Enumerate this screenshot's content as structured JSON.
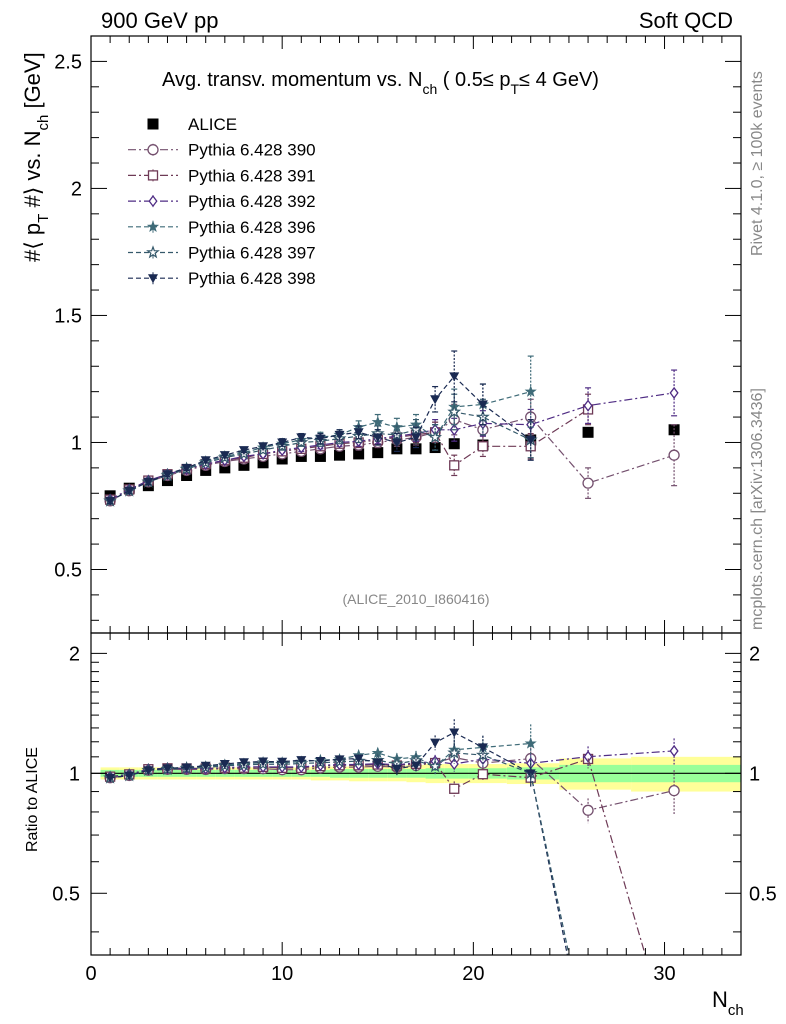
{
  "header": {
    "left": "900 GeV pp",
    "right": "Soft QCD"
  },
  "side": {
    "top": "Rivet 4.1.0, ≥ 100k events",
    "bottom": "mcplots.cern.ch [arXiv:1306.3436]"
  },
  "watermark": "(ALICE_2010_I860416)",
  "chart_data": {
    "type": "scatter",
    "title": {
      "main": "Avg. transv. momentum vs. N",
      "sub1": "ch",
      "mid": " ( 0.5≤ p",
      "sub2": "T",
      "end": "≤ 4 GeV)"
    },
    "xlabel": {
      "main": "N",
      "sub": "ch"
    },
    "ylabel": {
      "main": "#⟨ p",
      "sub1": "T",
      "mid": " #⟩ vs. N",
      "sub2": "ch",
      "end": " [GeV]"
    },
    "ratio_ylabel": "Ratio to ALICE",
    "xlim": [
      0,
      34
    ],
    "ylim": [
      0.25,
      2.6
    ],
    "ratio_ylim": [
      0.35,
      2.25
    ],
    "xticks": [
      "0",
      "10",
      "20",
      "30"
    ],
    "yticks": [
      "0.5",
      "1",
      "1.5",
      "2",
      "2.5"
    ],
    "ratio_yticks": [
      "0.5",
      "1",
      "2"
    ],
    "reference": {
      "name": "ALICE",
      "color": "#000000",
      "marker": "square",
      "x": [
        1,
        2,
        3,
        4,
        5,
        6,
        7,
        8,
        9,
        10,
        11,
        12,
        13,
        14,
        15,
        16,
        17,
        18,
        19,
        20.5,
        23,
        26,
        30.5
      ],
      "y": [
        0.79,
        0.82,
        0.83,
        0.85,
        0.87,
        0.89,
        0.9,
        0.91,
        0.92,
        0.935,
        0.945,
        0.945,
        0.95,
        0.955,
        0.96,
        0.975,
        0.975,
        0.98,
        0.995,
        0.99,
        1.01,
        1.04,
        1.05
      ],
      "band_rel_inner": [
        0.02,
        0.02,
        0.02,
        0.02,
        0.02,
        0.02,
        0.02,
        0.02,
        0.02,
        0.02,
        0.02,
        0.02,
        0.025,
        0.025,
        0.025,
        0.025,
        0.025,
        0.03,
        0.03,
        0.03,
        0.035,
        0.05,
        0.05
      ],
      "band_rel_outer": [
        0.035,
        0.035,
        0.035,
        0.035,
        0.035,
        0.035,
        0.035,
        0.035,
        0.035,
        0.035,
        0.035,
        0.04,
        0.04,
        0.045,
        0.045,
        0.045,
        0.05,
        0.055,
        0.055,
        0.055,
        0.06,
        0.09,
        0.1
      ]
    },
    "series": [
      {
        "name": "Pythia 6.428 390",
        "color": "#74506e",
        "marker": "circle-open",
        "dash": "8,3,2,3",
        "x": [
          1,
          2,
          3,
          4,
          5,
          6,
          7,
          8,
          9,
          10,
          11,
          12,
          13,
          14,
          15,
          16,
          17,
          18,
          19,
          20.5,
          23,
          26,
          30.5
        ],
        "y": [
          0.77,
          0.81,
          0.845,
          0.87,
          0.89,
          0.91,
          0.925,
          0.935,
          0.945,
          0.955,
          0.965,
          0.975,
          0.985,
          0.99,
          1.0,
          1.01,
          1.02,
          1.04,
          1.09,
          1.05,
          1.1,
          0.84,
          0.95
        ],
        "err": [
          0.01,
          0.01,
          0.01,
          0.01,
          0.01,
          0.01,
          0.01,
          0.01,
          0.01,
          0.01,
          0.015,
          0.015,
          0.015,
          0.02,
          0.02,
          0.025,
          0.03,
          0.04,
          0.06,
          0.05,
          0.07,
          0.06,
          0.12
        ]
      },
      {
        "name": "Pythia 6.428 391",
        "color": "#6e3a56",
        "marker": "square-open",
        "dash": "8,3,2,3",
        "x": [
          1,
          2,
          3,
          4,
          5,
          6,
          7,
          8,
          9,
          10,
          11,
          12,
          13,
          14,
          15,
          16,
          17,
          18,
          19,
          20.5,
          23,
          26
        ],
        "y": [
          0.775,
          0.815,
          0.85,
          0.875,
          0.895,
          0.915,
          0.93,
          0.94,
          0.955,
          0.965,
          0.975,
          0.985,
          0.995,
          1.0,
          1.01,
          1.02,
          1.03,
          1.04,
          0.91,
          0.985,
          0.985,
          1.13
        ],
        "err": [
          0.01,
          0.01,
          0.01,
          0.01,
          0.01,
          0.01,
          0.01,
          0.01,
          0.01,
          0.01,
          0.015,
          0.015,
          0.015,
          0.02,
          0.02,
          0.025,
          0.03,
          0.04,
          0.04,
          0.04,
          0.05,
          0.06
        ]
      },
      {
        "name": "Pythia 6.428 392",
        "color": "#4f2c84",
        "marker": "diamond-open",
        "dash": "8,3,2,3",
        "x": [
          1,
          2,
          3,
          4,
          5,
          6,
          7,
          8,
          9,
          10,
          11,
          12,
          13,
          14,
          15,
          16,
          17,
          18,
          19,
          20.5,
          23,
          26,
          30.5
        ],
        "y": [
          0.775,
          0.815,
          0.85,
          0.875,
          0.895,
          0.915,
          0.93,
          0.945,
          0.955,
          0.97,
          0.98,
          0.99,
          1.0,
          1.005,
          1.015,
          1.025,
          1.035,
          1.05,
          1.05,
          1.075,
          1.07,
          1.145,
          1.195
        ],
        "err": [
          0.01,
          0.01,
          0.01,
          0.01,
          0.01,
          0.01,
          0.01,
          0.01,
          0.01,
          0.01,
          0.015,
          0.015,
          0.015,
          0.02,
          0.02,
          0.025,
          0.03,
          0.04,
          0.045,
          0.05,
          0.06,
          0.07,
          0.09
        ]
      },
      {
        "name": "Pythia 6.428 396",
        "color": "#3f6b78",
        "marker": "star-filled",
        "dash": "5,3",
        "x": [
          1,
          2,
          3,
          4,
          5,
          6,
          7,
          8,
          9,
          10,
          11,
          12,
          13,
          14,
          15,
          16,
          17,
          18,
          19,
          20.5,
          23
        ],
        "y": [
          0.77,
          0.81,
          0.845,
          0.875,
          0.9,
          0.925,
          0.945,
          0.96,
          0.98,
          0.995,
          1.01,
          1.02,
          1.03,
          1.06,
          1.08,
          1.06,
          1.07,
          1.02,
          1.14,
          1.15,
          1.2
        ],
        "err": [
          0.01,
          0.01,
          0.01,
          0.01,
          0.01,
          0.01,
          0.01,
          0.01,
          0.01,
          0.015,
          0.015,
          0.02,
          0.02,
          0.025,
          0.03,
          0.035,
          0.04,
          0.05,
          0.07,
          0.08,
          0.14
        ]
      },
      {
        "name": "Pythia 6.428 397",
        "color": "#35596b",
        "marker": "star-open",
        "dash": "5,3",
        "x": [
          1,
          2,
          3,
          4,
          5,
          6,
          7,
          8,
          9,
          10,
          11,
          12,
          13,
          14,
          15,
          16,
          17,
          18,
          19,
          20.5,
          23
        ],
        "y": [
          0.77,
          0.81,
          0.845,
          0.87,
          0.895,
          0.92,
          0.94,
          0.955,
          0.97,
          0.985,
          1.0,
          1.005,
          1.015,
          1.025,
          1.035,
          1.03,
          1.05,
          1.02,
          1.12,
          1.1,
          1.01
        ],
        "err": [
          0.01,
          0.01,
          0.01,
          0.01,
          0.01,
          0.01,
          0.01,
          0.01,
          0.01,
          0.015,
          0.015,
          0.02,
          0.02,
          0.025,
          0.03,
          0.035,
          0.04,
          0.05,
          0.07,
          0.07,
          0.07
        ]
      },
      {
        "name": "Pythia 6.428 398",
        "color": "#1a2a52",
        "marker": "triangle-down",
        "dash": "5,3",
        "x": [
          1,
          2,
          3,
          4,
          5,
          6,
          7,
          8,
          9,
          10,
          11,
          12,
          13,
          14,
          15,
          16,
          17,
          18,
          19,
          20.5,
          23
        ],
        "y": [
          0.77,
          0.81,
          0.845,
          0.875,
          0.9,
          0.93,
          0.95,
          0.97,
          0.985,
          1.0,
          1.02,
          1.015,
          1.03,
          1.04,
          1.02,
          1.0,
          1.02,
          1.17,
          1.26,
          1.15,
          1.01
        ],
        "err": [
          0.01,
          0.01,
          0.01,
          0.01,
          0.01,
          0.01,
          0.01,
          0.01,
          0.01,
          0.015,
          0.015,
          0.02,
          0.02,
          0.025,
          0.03,
          0.035,
          0.04,
          0.05,
          0.1,
          0.08,
          0.08
        ]
      }
    ],
    "ratio_extra": [
      {
        "series": 5,
        "from_x": 23,
        "from_y": 1.0,
        "to_x": 25.2,
        "to_y": 0.3
      },
      {
        "series": 4,
        "from_x": 23,
        "from_y": 1.0,
        "to_x": 25.3,
        "to_y": 0.3
      },
      {
        "series": 1,
        "from_x": 26,
        "from_y": 1.09,
        "to_x": 29.4,
        "to_y": 0.3
      }
    ]
  }
}
